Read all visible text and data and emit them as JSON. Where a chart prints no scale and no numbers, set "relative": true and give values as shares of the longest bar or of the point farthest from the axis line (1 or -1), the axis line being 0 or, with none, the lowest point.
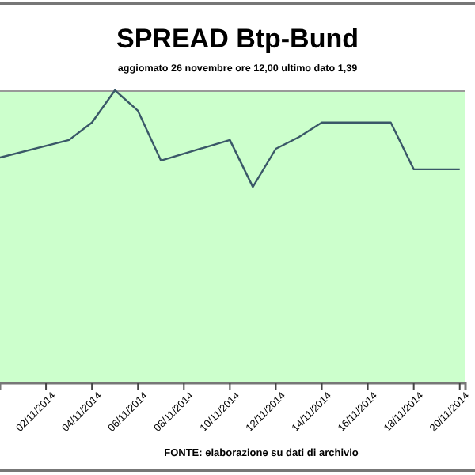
{
  "chart_data": {
    "type": "line",
    "title": "SPREAD Btp-Bund",
    "subtitle": "aggiomato 26 novembre ore 12,00  ultimo dato  1,39",
    "annotations": [
      "FONTE: elaborazione su dati di archivio"
    ],
    "relative": true,
    "x": [
      "2014-10-31",
      "2014-11-03",
      "2014-11-04",
      "2014-11-05",
      "2014-11-06",
      "2014-11-07",
      "2014-11-10",
      "2014-11-11",
      "2014-11-12",
      "2014-11-13",
      "2014-11-14",
      "2014-11-17",
      "2014-11-18",
      "2014-11-19",
      "2014-11-20"
    ],
    "series": [
      {
        "color": "#3a5868",
        "values": [
          0.77,
          0.83,
          0.89,
          1,
          0.93,
          0.76,
          0.83,
          0.67,
          0.8,
          0.84,
          0.89,
          0.89,
          0.73,
          0.73,
          0.73
        ]
      }
    ],
    "xlim": [
      "2014-10-31",
      "2014-11-20T06:00"
    ],
    "xticks": [
      {
        "value": "2014-11-02",
        "label": "02/11/2014"
      },
      {
        "value": "2014-11-04",
        "label": "04/11/2014"
      },
      {
        "value": "2014-11-06",
        "label": "06/11/2014"
      },
      {
        "value": "2014-11-08",
        "label": "08/11/2014"
      },
      {
        "value": "2014-11-10",
        "label": "10/11/2014"
      },
      {
        "value": "2014-11-12",
        "label": "12/11/2014"
      },
      {
        "value": "2014-11-14",
        "label": "14/11/2014"
      },
      {
        "value": "2014-11-16",
        "label": "16/11/2014"
      },
      {
        "value": "2014-11-18",
        "label": "18/11/2014"
      },
      {
        "value": "2014-11-20",
        "label": "20/11/2014"
      }
    ],
    "marker": "none",
    "line_style": "solid"
  }
}
